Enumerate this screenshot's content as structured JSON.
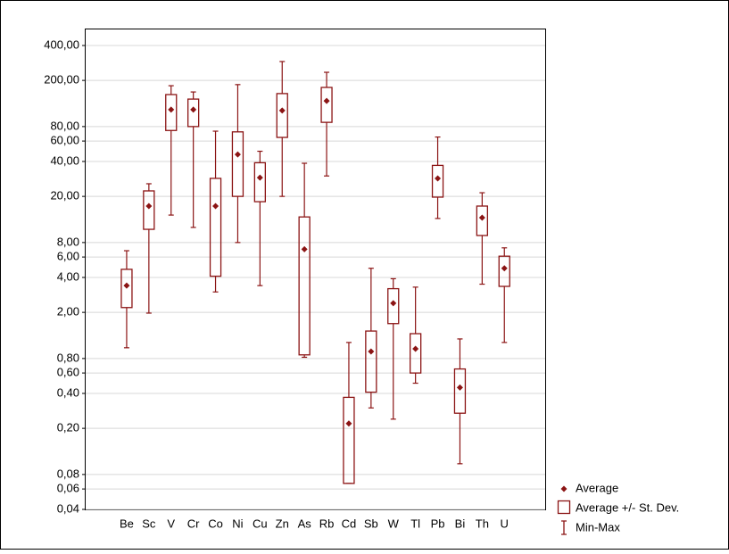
{
  "chart_data": {
    "type": "box",
    "log_scale": true,
    "grid": true,
    "color": "#8b1414",
    "categories": [
      "Be",
      "Sc",
      "V",
      "Cr",
      "Co",
      "Ni",
      "Cu",
      "Zn",
      "As",
      "Rb",
      "Cd",
      "Sb",
      "W",
      "Tl",
      "Pb",
      "Bi",
      "Th",
      "U"
    ],
    "mean": [
      3.4,
      16.5,
      112,
      112,
      16.5,
      46,
      29,
      110,
      7.0,
      133,
      0.22,
      0.92,
      2.4,
      0.97,
      28.6,
      0.45,
      13.1,
      4.8
    ],
    "sd_high": [
      4.7,
      22.3,
      151,
      138,
      28.6,
      72,
      39,
      154,
      13.3,
      174,
      0.37,
      1.38,
      3.2,
      1.31,
      37,
      0.65,
      16.5,
      6.1
    ],
    "sd_low": [
      2.2,
      10.4,
      74,
      80,
      4.1,
      20,
      18,
      64.5,
      0.86,
      87,
      0.067,
      0.41,
      1.6,
      0.6,
      19.7,
      0.27,
      9.2,
      3.35
    ],
    "max": [
      6.8,
      25.7,
      180,
      159,
      73,
      184,
      49,
      291,
      38.6,
      235,
      1.1,
      4.8,
      3.9,
      3.3,
      65,
      1.18,
      21.5,
      7.2
    ],
    "min": [
      0.99,
      1.97,
      13.8,
      10.8,
      3.0,
      8.0,
      3.4,
      20,
      0.82,
      30,
      0.067,
      0.3,
      0.24,
      0.49,
      12.9,
      0.099,
      3.5,
      1.1
    ],
    "legend": [
      "Average",
      "Average +/- St. Dev.",
      "Min-Max"
    ],
    "ylim": [
      0.04,
      560
    ],
    "yticks": [
      {
        "value": 0.04,
        "label": "0,04"
      },
      {
        "value": 0.06,
        "label": "0,06"
      },
      {
        "value": 0.08,
        "label": "0,08"
      },
      {
        "value": 0.2,
        "label": "0,20"
      },
      {
        "value": 0.4,
        "label": "0,40"
      },
      {
        "value": 0.6,
        "label": "0,60"
      },
      {
        "value": 0.8,
        "label": "0,80"
      },
      {
        "value": 2,
        "label": "2,00"
      },
      {
        "value": 4,
        "label": "4,00"
      },
      {
        "value": 6,
        "label": "6,00"
      },
      {
        "value": 8,
        "label": "8,00"
      },
      {
        "value": 20,
        "label": "20,00"
      },
      {
        "value": 40,
        "label": "40,00"
      },
      {
        "value": 60,
        "label": "60,00"
      },
      {
        "value": 80,
        "label": "80,00"
      },
      {
        "value": 200,
        "label": "200,00"
      },
      {
        "value": 400,
        "label": "400,00"
      }
    ]
  }
}
